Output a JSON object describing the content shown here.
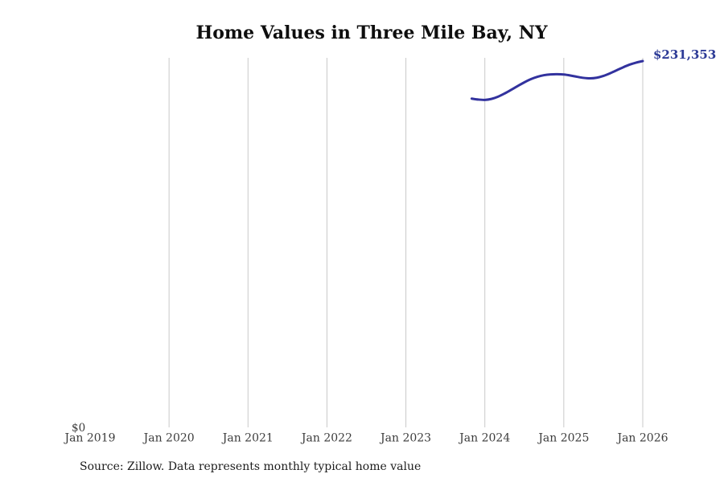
{
  "header": {
    "title": "Home Values in Three Mile Bay, NY"
  },
  "footer": {
    "source_note": "Source: Zillow. Data represents monthly typical home value"
  },
  "chart_data": {
    "type": "line",
    "title": "Home Values in Three Mile Bay, NY",
    "xlabel": "",
    "ylabel": "",
    "grid": "vertical-only",
    "legend": "none",
    "colors": {
      "line": "#32329e",
      "value_label": "#2c3a96",
      "gridline": "#c9c9c9",
      "tick_text": "#3c3c3c"
    },
    "y_axis": {
      "zero_label": "$0",
      "ymin": 0,
      "ymax_approx": 233500
    },
    "x_ticks": [
      {
        "label": "Jan 2019",
        "gridline": false
      },
      {
        "label": "Jan 2020",
        "gridline": true
      },
      {
        "label": "Jan 2021",
        "gridline": true
      },
      {
        "label": "Jan 2022",
        "gridline": true
      },
      {
        "label": "Jan 2023",
        "gridline": true
      },
      {
        "label": "Jan 2024",
        "gridline": true
      },
      {
        "label": "Jan 2025",
        "gridline": true
      },
      {
        "label": "Jan 2026",
        "gridline": true
      }
    ],
    "end_label": "$231,353",
    "latest_value": 231353,
    "series": [
      {
        "name": "Typical home value",
        "start_month": "2023-11",
        "values": [
          207800,
          207200,
          207000,
          207600,
          209000,
          211000,
          213300,
          215700,
          218000,
          220000,
          221500,
          222500,
          223000,
          223100,
          222900,
          222300,
          221500,
          220800,
          220500,
          220900,
          222000,
          223600,
          225500,
          227400,
          229100,
          230400,
          231353
        ]
      }
    ]
  }
}
